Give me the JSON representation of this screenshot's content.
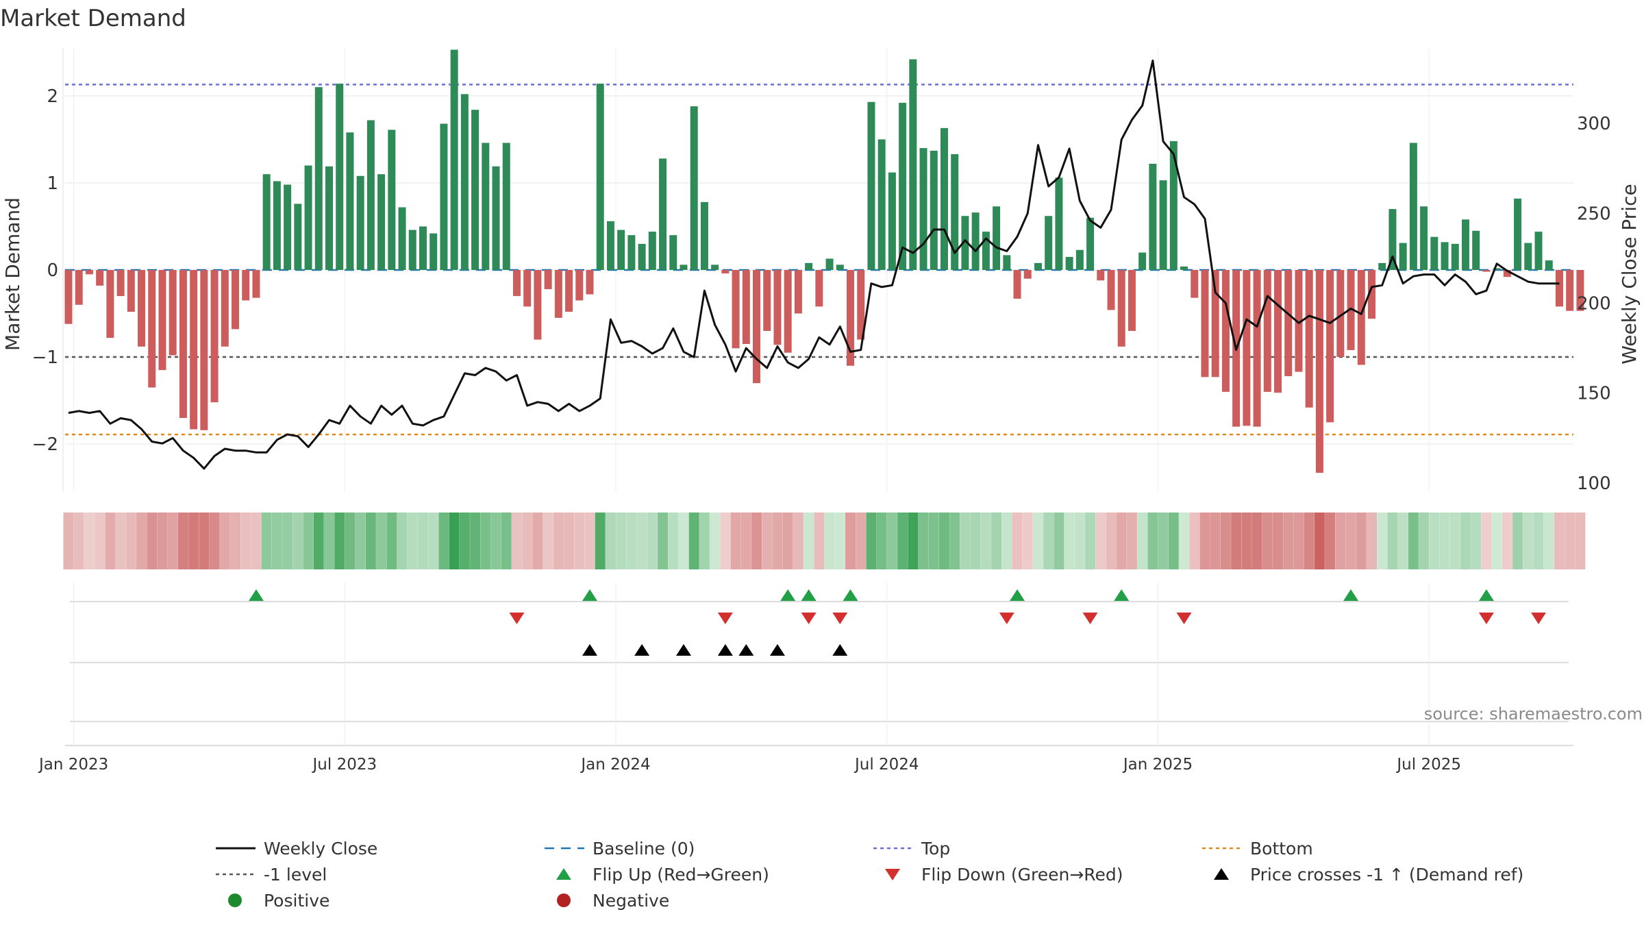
{
  "chart_data": {
    "type": "bar",
    "title": "Market Demand",
    "ylabel": "Market Demand",
    "y2label": "Weekly Close Price",
    "ylim": [
      -2.55,
      2.55
    ],
    "y2lim": [
      95,
      342
    ],
    "yticks": [
      -2,
      -1,
      0,
      1,
      2
    ],
    "y2ticks": [
      100,
      150,
      200,
      250,
      300
    ],
    "xticks": [
      "Jan 2023",
      "Jul 2023",
      "Jan 2024",
      "Jul 2024",
      "Jan 2025",
      "Jul 2025"
    ],
    "xtick_week_index": [
      0.5,
      26.5,
      52.5,
      78.5,
      104.5,
      130.5
    ],
    "reference_lines": {
      "top": 2.13,
      "bottom": -1.89,
      "minus_one": -1.0,
      "baseline": 0
    },
    "demand": [
      -0.62,
      -0.4,
      -0.05,
      -0.18,
      -0.78,
      -0.3,
      -0.48,
      -0.88,
      -1.35,
      -1.15,
      -0.98,
      -1.7,
      -1.83,
      -1.84,
      -1.52,
      -0.88,
      -0.68,
      -0.35,
      -0.32,
      1.1,
      1.02,
      0.98,
      0.76,
      1.2,
      2.1,
      1.19,
      2.14,
      1.58,
      1.08,
      1.72,
      1.1,
      1.61,
      0.72,
      0.46,
      0.5,
      0.42,
      1.68,
      2.53,
      2.02,
      1.84,
      1.46,
      1.19,
      1.46,
      -0.3,
      -0.42,
      -0.8,
      -0.22,
      -0.55,
      -0.48,
      -0.35,
      -0.28,
      2.14,
      0.56,
      0.46,
      0.4,
      0.3,
      0.44,
      1.28,
      0.4,
      0.06,
      1.88,
      0.78,
      0.06,
      -0.04,
      -0.9,
      -0.85,
      -1.3,
      -0.7,
      -0.86,
      -0.95,
      -0.5,
      0.08,
      -0.42,
      0.13,
      0.06,
      -1.1,
      -0.8,
      1.93,
      1.5,
      1.12,
      1.92,
      2.42,
      1.4,
      1.37,
      1.63,
      1.33,
      0.62,
      0.66,
      0.44,
      0.73,
      0.17,
      -0.33,
      -0.1,
      0.08,
      0.62,
      1.06,
      0.15,
      0.23,
      0.6,
      -0.12,
      -0.46,
      -0.88,
      -0.7,
      0.2,
      1.22,
      1.03,
      1.48,
      0.04,
      -0.32,
      -1.23,
      -1.23,
      -1.4,
      -1.8,
      -1.79,
      -1.8,
      -1.4,
      -1.41,
      -1.22,
      -1.17,
      -1.58,
      -2.33,
      -1.75,
      -1.0,
      -0.92,
      -1.09,
      -0.56,
      0.08,
      0.7,
      0.31,
      1.46,
      0.73,
      0.38,
      0.32,
      0.3,
      0.58,
      0.45,
      -0.02,
      0.02,
      -0.08,
      0.82,
      0.31,
      0.44,
      0.11,
      -0.42,
      -0.47,
      -0.47
    ],
    "weekly_close": [
      139,
      140,
      139,
      140,
      133,
      136,
      135,
      130,
      123,
      122,
      125,
      118,
      114,
      108,
      115,
      119,
      118,
      118,
      117,
      117,
      124,
      127,
      126,
      120,
      127,
      135,
      133,
      143,
      137,
      133,
      143,
      138,
      143,
      133,
      132,
      135,
      137,
      149,
      161,
      160,
      164,
      162,
      157,
      160,
      143,
      145,
      144,
      140,
      144,
      140,
      143,
      147,
      191,
      178,
      179,
      176,
      172,
      175,
      186,
      173,
      170,
      207,
      188,
      177,
      162,
      175,
      169,
      164,
      176,
      167,
      164,
      169,
      181,
      177,
      187,
      173,
      174,
      211,
      209,
      210,
      231,
      228,
      233,
      241,
      241,
      228,
      235,
      229,
      236,
      231,
      229,
      237,
      250,
      288,
      265,
      270,
      286,
      257,
      246,
      242,
      252,
      291,
      302,
      310,
      335,
      290,
      283,
      259,
      255,
      247,
      206,
      200,
      174,
      191,
      187,
      204,
      199,
      194,
      189,
      193,
      191,
      189,
      193,
      197,
      194,
      209,
      210,
      226,
      211,
      215,
      216,
      216,
      210,
      216,
      212,
      205,
      207,
      222,
      218,
      215,
      212,
      211,
      211,
      211
    ],
    "flip_up_weeks": [
      18,
      50,
      69,
      71,
      75,
      91,
      101,
      123,
      136
    ],
    "flip_down_weeks": [
      43,
      63,
      71,
      74,
      90,
      98,
      107,
      136,
      141
    ],
    "price_cross_weeks": [
      50,
      55,
      59,
      63,
      65,
      68,
      74
    ],
    "legend": [
      {
        "label": "Weekly Close",
        "symbol": "line",
        "color": "#111111"
      },
      {
        "label": "Baseline (0)",
        "symbol": "dash",
        "color": "#1f77b4"
      },
      {
        "label": "Top",
        "symbol": "dot",
        "color": "#6a6fd6"
      },
      {
        "label": "Bottom",
        "symbol": "dot",
        "color": "#e08a1e"
      },
      {
        "label": "-1 level",
        "symbol": "dot",
        "color": "#555555"
      },
      {
        "label": "Flip Up (Red→Green)",
        "symbol": "tri-up",
        "color": "#23a047"
      },
      {
        "label": "Flip Down (Green→Red)",
        "symbol": "tri-down",
        "color": "#d32f2f"
      },
      {
        "label": "Price crosses -1 ↑ (Demand ref)",
        "symbol": "tri-up",
        "color": "#000000"
      },
      {
        "label": "Positive",
        "symbol": "circle",
        "color": "#1e8a2e"
      },
      {
        "label": "Negative",
        "symbol": "circle",
        "color": "#b22222"
      }
    ]
  },
  "colors": {
    "positive_bar": "#2e8b57",
    "negative_bar": "#cd5c5c",
    "price_line": "#111111",
    "grid": "#e6e6e6"
  },
  "source": "source: sharemaestro.com"
}
